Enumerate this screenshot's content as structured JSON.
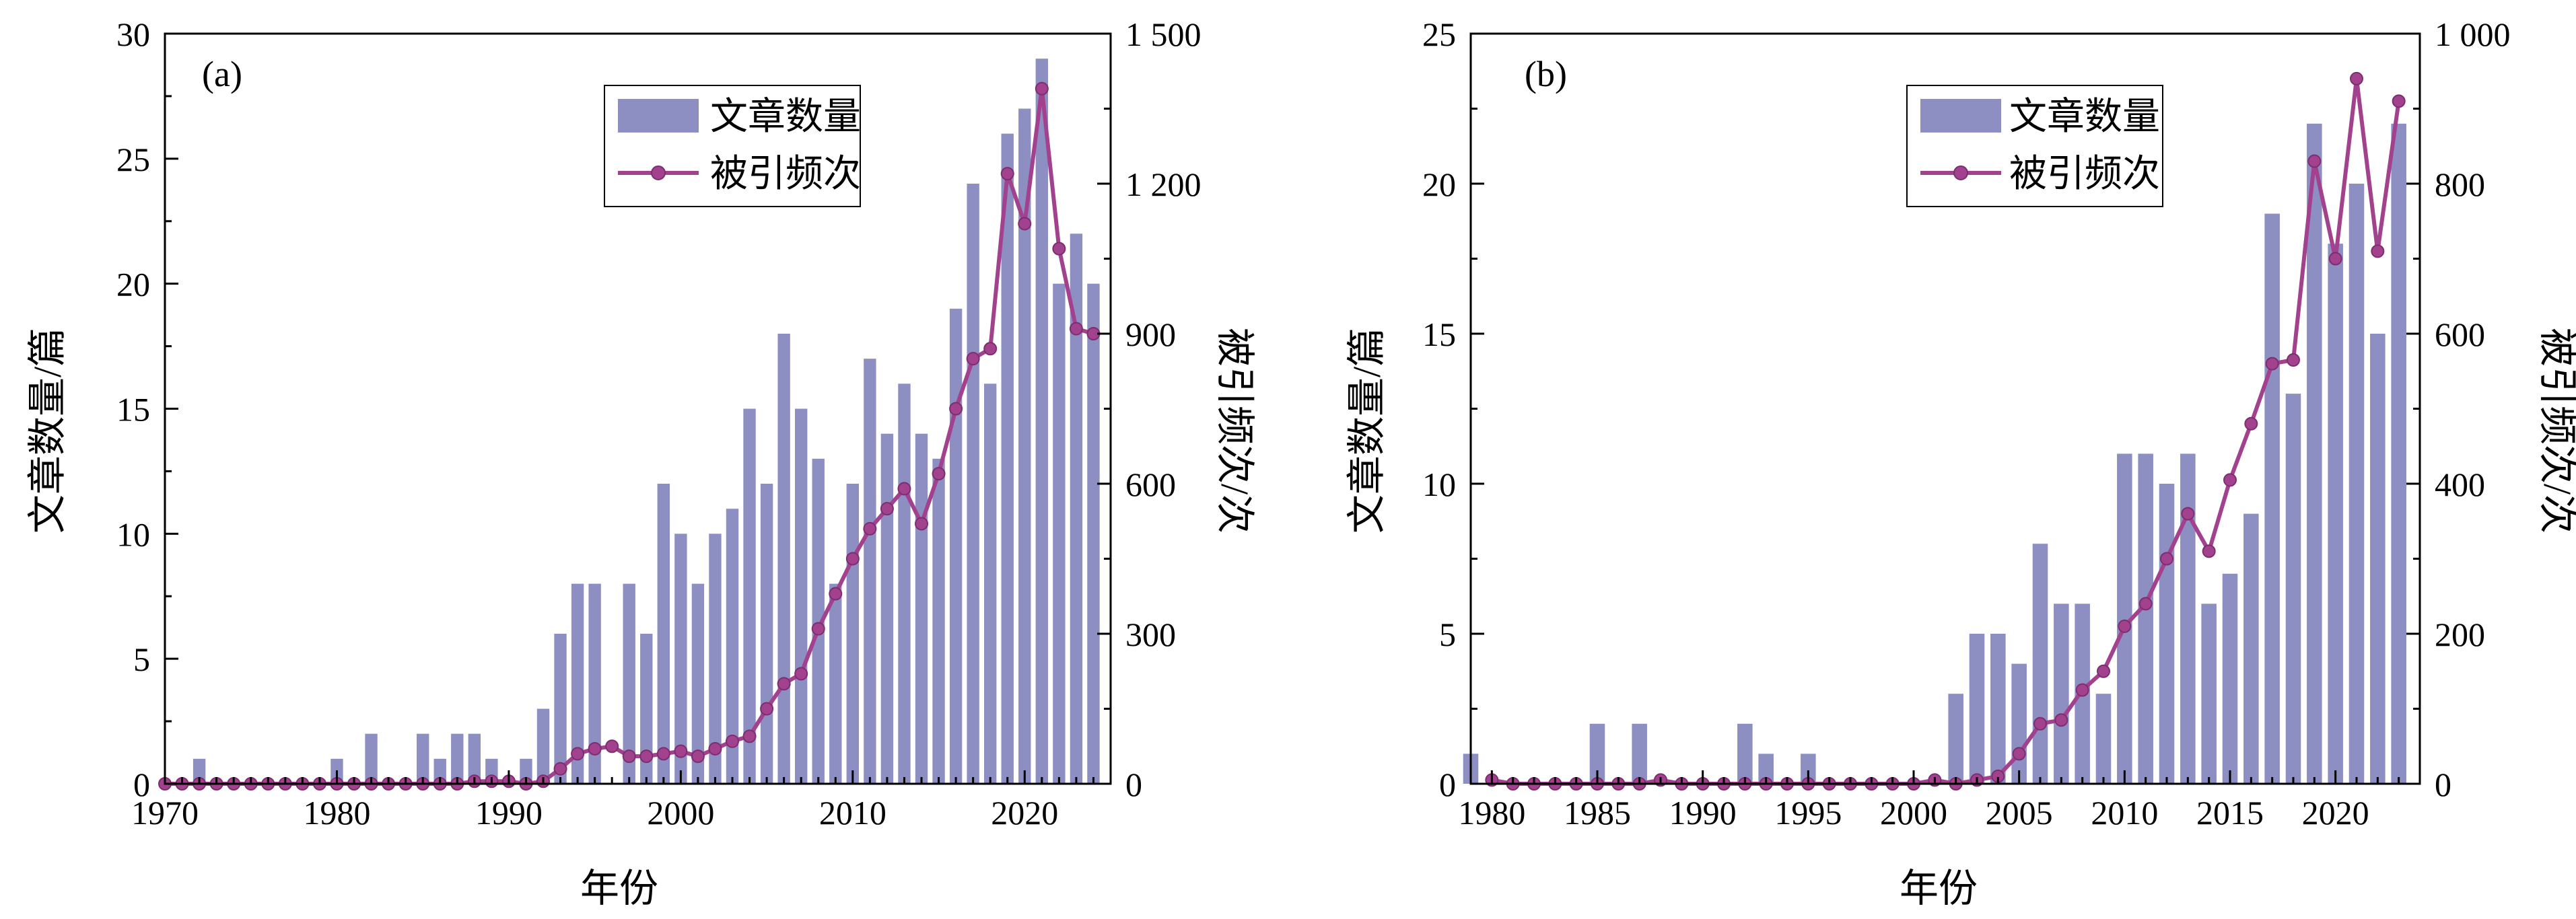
{
  "colors": {
    "bar": "#8d8fc2",
    "line": "#a2428f",
    "axis": "#000000",
    "background": "#ffffff"
  },
  "chart_data": [
    {
      "type": "bar+line",
      "panel_label": "(a)",
      "xlabel": "年份",
      "ylabel_left": "文章数量/篇",
      "ylabel_right": "被引频次/次",
      "xlim": [
        1970,
        2025
      ],
      "ylim_left": [
        0,
        30
      ],
      "ylim_right": [
        0,
        1500
      ],
      "x_ticks": [
        1970,
        1980,
        1990,
        2000,
        2010,
        2020
      ],
      "x_tick_labels": [
        "1970",
        "1980",
        "1990",
        "2000",
        "2010",
        "2020"
      ],
      "y_left_ticks": [
        0,
        5,
        10,
        15,
        20,
        25,
        30
      ],
      "y_left_tick_labels": [
        "0",
        "5",
        "10",
        "15",
        "20",
        "25",
        "30"
      ],
      "y_right_ticks": [
        0,
        300,
        600,
        900,
        1200,
        1500
      ],
      "y_right_tick_labels": [
        "0",
        "300",
        "600",
        "900",
        "1 200",
        "1 500"
      ],
      "legend": {
        "placement": "top-center",
        "labels": [
          "文章数量",
          "被引频次"
        ]
      },
      "series": [
        {
          "name": "文章数量",
          "type": "bar",
          "axis": "left",
          "x": [
            1970,
            1971,
            1972,
            1973,
            1974,
            1975,
            1976,
            1977,
            1978,
            1979,
            1980,
            1981,
            1982,
            1983,
            1984,
            1985,
            1986,
            1987,
            1988,
            1989,
            1990,
            1991,
            1992,
            1993,
            1994,
            1995,
            1996,
            1997,
            1998,
            1999,
            2000,
            2001,
            2002,
            2003,
            2004,
            2005,
            2006,
            2007,
            2008,
            2009,
            2010,
            2011,
            2012,
            2013,
            2014,
            2015,
            2016,
            2017,
            2018,
            2019,
            2020,
            2021,
            2022,
            2023,
            2024
          ],
          "values": [
            0,
            0,
            1,
            0,
            0,
            0,
            0,
            0,
            0,
            0,
            1,
            0,
            2,
            0,
            0,
            2,
            1,
            2,
            2,
            1,
            0,
            1,
            3,
            6,
            8,
            8,
            0,
            8,
            6,
            12,
            10,
            8,
            10,
            11,
            15,
            12,
            18,
            15,
            13,
            8,
            12,
            17,
            14,
            16,
            14,
            13,
            19,
            24,
            16,
            26,
            27,
            29,
            20,
            22,
            20
          ]
        },
        {
          "name": "被引频次",
          "type": "line",
          "axis": "right",
          "x": [
            1970,
            1971,
            1972,
            1973,
            1974,
            1975,
            1976,
            1977,
            1978,
            1979,
            1980,
            1981,
            1982,
            1983,
            1984,
            1985,
            1986,
            1987,
            1988,
            1989,
            1990,
            1991,
            1992,
            1993,
            1994,
            1995,
            1996,
            1997,
            1998,
            1999,
            2000,
            2001,
            2002,
            2003,
            2004,
            2005,
            2006,
            2007,
            2008,
            2009,
            2010,
            2011,
            2012,
            2013,
            2014,
            2015,
            2016,
            2017,
            2018,
            2019,
            2020,
            2021,
            2022,
            2023,
            2024
          ],
          "values": [
            0,
            0,
            0,
            0,
            0,
            0,
            0,
            0,
            0,
            0,
            0,
            0,
            0,
            0,
            0,
            0,
            0,
            0,
            5,
            5,
            5,
            0,
            5,
            30,
            60,
            70,
            75,
            55,
            55,
            60,
            65,
            55,
            70,
            85,
            95,
            150,
            200,
            220,
            310,
            380,
            450,
            510,
            550,
            590,
            520,
            620,
            750,
            850,
            870,
            1220,
            1120,
            1390,
            1070,
            910,
            900
          ]
        }
      ]
    },
    {
      "type": "bar+line",
      "panel_label": "(b)",
      "xlabel": "年份",
      "ylabel_left": "文章数量/篇",
      "ylabel_right": "被引频次/次",
      "xlim": [
        1979,
        2024
      ],
      "ylim_left": [
        0,
        25
      ],
      "ylim_right": [
        0,
        1000
      ],
      "x_ticks": [
        1980,
        1985,
        1990,
        1995,
        2000,
        2005,
        2010,
        2015,
        2020
      ],
      "x_tick_labels": [
        "1980",
        "1985",
        "1990",
        "1995",
        "2000",
        "2005",
        "2010",
        "2015",
        "2020"
      ],
      "y_left_ticks": [
        0,
        5,
        10,
        15,
        20,
        25
      ],
      "y_left_tick_labels": [
        "0",
        "5",
        "10",
        "15",
        "20",
        "25"
      ],
      "y_right_ticks": [
        0,
        200,
        400,
        600,
        800,
        1000
      ],
      "y_right_tick_labels": [
        "0",
        "200",
        "400",
        "600",
        "800",
        "1 000"
      ],
      "legend": {
        "placement": "top-center",
        "labels": [
          "文章数量",
          "被引频次"
        ]
      },
      "series": [
        {
          "name": "文章数量",
          "type": "bar",
          "axis": "left",
          "x": [
            1979,
            1980,
            1981,
            1982,
            1983,
            1984,
            1985,
            1986,
            1987,
            1988,
            1989,
            1990,
            1991,
            1992,
            1993,
            1994,
            1995,
            1996,
            1997,
            1998,
            1999,
            2000,
            2001,
            2002,
            2003,
            2004,
            2005,
            2006,
            2007,
            2008,
            2009,
            2010,
            2011,
            2012,
            2013,
            2014,
            2015,
            2016,
            2017,
            2018,
            2019,
            2020,
            2021,
            2022,
            2023
          ],
          "values": [
            1,
            0,
            0,
            0,
            0,
            0,
            2,
            0,
            2,
            0,
            0,
            0,
            0,
            2,
            1,
            0,
            1,
            0,
            0,
            0,
            0,
            0,
            0,
            3,
            5,
            5,
            4,
            8,
            6,
            6,
            3,
            11,
            11,
            10,
            11,
            6,
            7,
            9,
            19,
            13,
            22,
            18,
            20,
            15,
            22
          ]
        },
        {
          "name": "被引频次",
          "type": "line",
          "axis": "right",
          "x": [
            1980,
            1981,
            1982,
            1983,
            1984,
            1985,
            1986,
            1987,
            1988,
            1989,
            1990,
            1991,
            1992,
            1993,
            1994,
            1995,
            1996,
            1997,
            1998,
            1999,
            2000,
            2001,
            2002,
            2003,
            2004,
            2005,
            2006,
            2007,
            2008,
            2009,
            2010,
            2011,
            2012,
            2013,
            2014,
            2015,
            2016,
            2017,
            2018,
            2019,
            2020,
            2021,
            2022,
            2023
          ],
          "values": [
            5,
            0,
            0,
            0,
            0,
            0,
            0,
            0,
            5,
            0,
            0,
            0,
            0,
            0,
            0,
            0,
            0,
            0,
            0,
            0,
            0,
            5,
            0,
            5,
            10,
            40,
            80,
            85,
            125,
            150,
            210,
            240,
            300,
            360,
            310,
            405,
            480,
            560,
            565,
            830,
            700,
            940,
            710,
            910
          ]
        }
      ]
    }
  ]
}
